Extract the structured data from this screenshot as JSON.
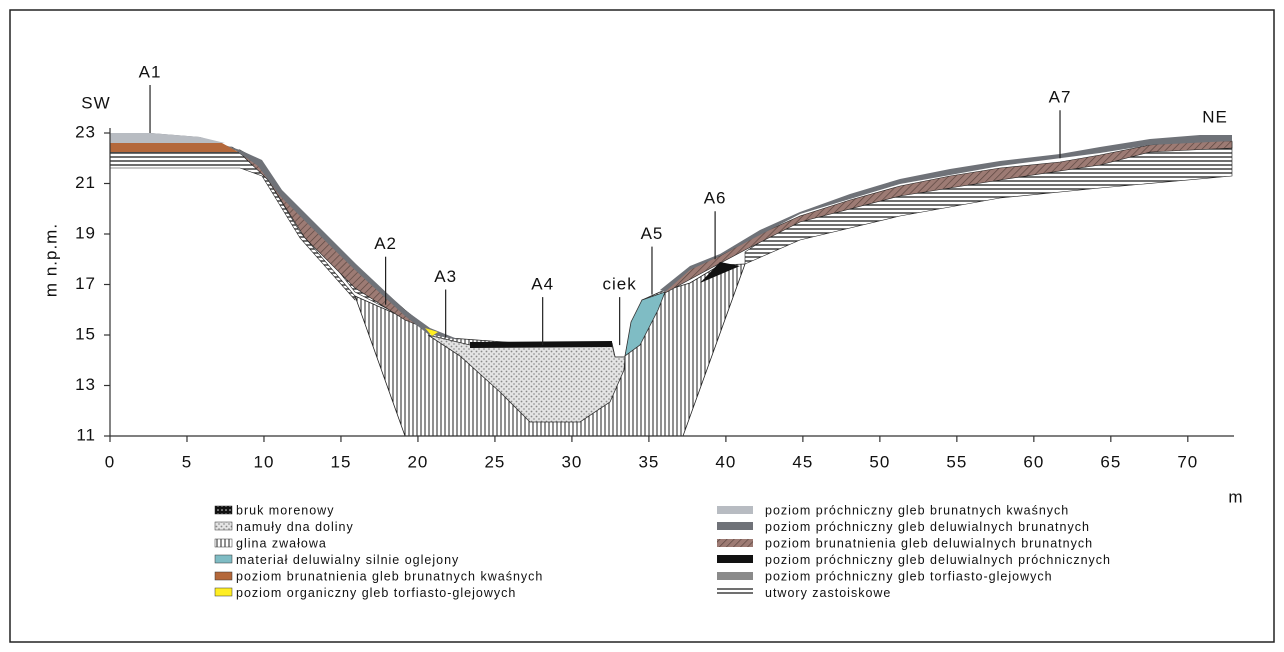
{
  "chart_data": {
    "type": "cross-section",
    "y_label": "m n.p.m.",
    "x_label": "m",
    "left_label": "SW",
    "right_label": "NE",
    "xlim": [
      0,
      73
    ],
    "xticks": [
      0,
      5,
      10,
      15,
      20,
      25,
      30,
      35,
      40,
      45,
      50,
      55,
      60,
      65,
      70
    ],
    "ylim": [
      11,
      23
    ],
    "yticks": [
      11,
      13,
      15,
      17,
      19,
      21,
      23
    ],
    "annotations": [
      {
        "label": "A1",
        "x": 2.6,
        "y": 23
      },
      {
        "label": "A2",
        "x": 17.9,
        "y": 16.2
      },
      {
        "label": "A3",
        "x": 21.8,
        "y": 14.9
      },
      {
        "label": "A4",
        "x": 28.1,
        "y": 14.6
      },
      {
        "label": "ciek",
        "x": 33.1,
        "y": 14.6
      },
      {
        "label": "A5",
        "x": 35.2,
        "y": 16.6
      },
      {
        "label": "A6",
        "x": 39.3,
        "y": 18
      },
      {
        "label": "A7",
        "x": 61.7,
        "y": 22
      }
    ],
    "legend_left": [
      "bruk morenowy",
      "namuły dna doliny",
      "glina zwałowa",
      "materiał deluwialny silnie oglejony",
      "poziom brunatnienia gleb brunatnych kwaśnych",
      "poziom organiczny gleb torfiasto-glejowych"
    ],
    "legend_right": [
      "poziom próchniczny gleb brunatnych kwaśnych",
      "poziom próchniczny gleb deluwialnych brunatnych",
      "poziom brunatnienia gleb deluwialnych brunatnych",
      "poziom próchniczny gleb deluwialnych próchnicznych",
      "poziom próchniczny gleb torfiasto-glejowych",
      "utwory zastoiskowe"
    ]
  }
}
